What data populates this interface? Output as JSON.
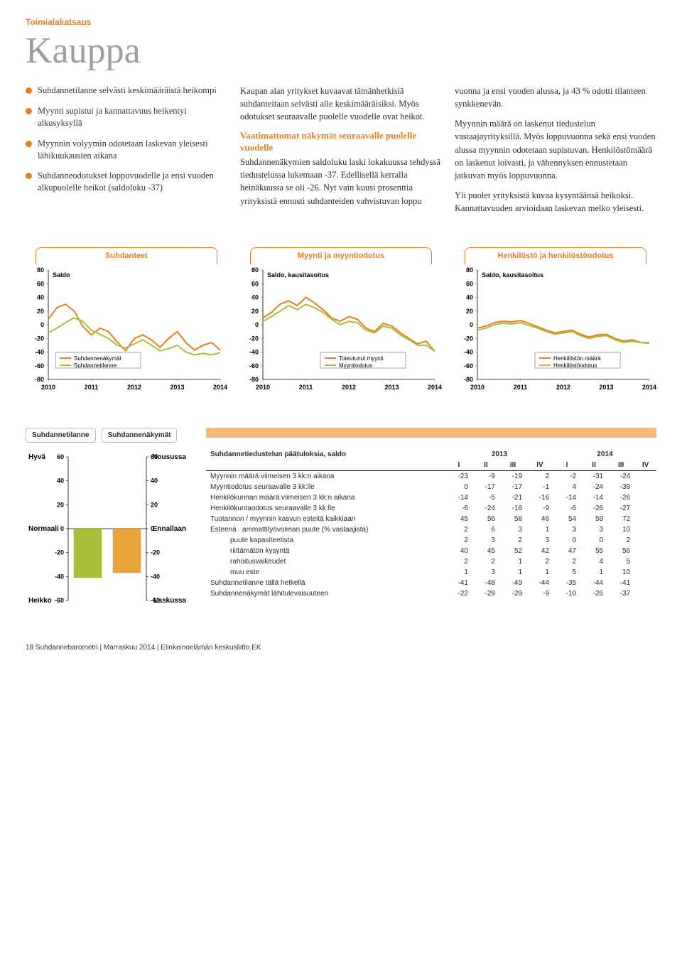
{
  "colors": {
    "accent": "#e87d1f",
    "title": "#9aa19d",
    "series1": "#e87d1f",
    "series2": "#a8bf3a",
    "bar1": "#a8bf3a",
    "bar2": "#e9a33b",
    "strip": "#f3b97a"
  },
  "header": {
    "section": "Toimialakatsaus",
    "title": "Kauppa"
  },
  "bullets": [
    "Suhdannetilanne selvästi keskimääräistä heikompi",
    "Myynti supistui ja kannattavuus heikentyi alkusyksyllä",
    "Myynnin volyymin odotetaan laskevan yleisesti lähikuukausien aikana",
    "Suhdanneodotukset loppuvuodelle ja ensi vuoden alkupuolelle heikot (saldoluku -37)"
  ],
  "col2": {
    "p1": "Kaupan alan yritykset kuvaavat tämänhetkisiä suhdanteitaan selvästi alle keskimääräisiksi. Myös odotukset seuraavalle puolelle vuodelle ovat heikot.",
    "subhead": "Vaatimattomat näkymät seuraavalle puolelle vuodelle",
    "p2": "Suhdannenäkymien saldoluku laski lokakuussa tehdyssä tiedustelussa lukemaan -37. Edellisellä kerralla heinäkuussa se oli -26. Nyt vain kuusi prosenttia yrityksistä ennusti suhdanteiden vahvistuvan loppu"
  },
  "col3": {
    "p1start": "vuonna ja ensi vuoden alussa, ja 43 % odotti tilanteen synkkenevän.",
    "p2": "Myynnin määrä on laskenut tiedustelun vastaajayrityksillä. Myös loppuvuonna sekä ensi vuoden alussa myynnin odotetaan supistuvan. Henkilöstömäärä on laskenut loivasti, ja vähennyksen ennustetaan jatkuvan myös loppuvuonna.",
    "p3": "Yli puolet yrityksistä kuvaa kysyntäänsä heikoksi. Kannattavuuden arvioidaan laskevan melko yleisesti."
  },
  "charts": [
    {
      "title": "Suhdanteet",
      "ylabel": "Saldo",
      "xticks": [
        "2010",
        "2011",
        "2012",
        "2013",
        "2014"
      ],
      "ymin": -80,
      "ymax": 80,
      "ystep": 20,
      "series": [
        {
          "name": "Suhdannenäkymät",
          "color": "#e87d1f",
          "values": [
            8,
            25,
            30,
            20,
            -2,
            -15,
            -5,
            -10,
            -25,
            -38,
            -20,
            -15,
            -22,
            -33,
            -20,
            -10,
            -26,
            -37,
            -30,
            -26,
            -37
          ]
        },
        {
          "name": "Suhdannetilanne",
          "color": "#a8bf3a",
          "values": [
            -12,
            -5,
            3,
            10,
            5,
            -8,
            -14,
            -20,
            -30,
            -34,
            -28,
            -22,
            -30,
            -38,
            -35,
            -30,
            -40,
            -44,
            -42,
            -44,
            -41
          ]
        }
      ],
      "legend_pos": "bottom-left"
    },
    {
      "title": "Myynti ja myyntiodotus",
      "ylabel": "Saldo, kausitasoitus",
      "xticks": [
        "2010",
        "2011",
        "2012",
        "2013",
        "2014"
      ],
      "ymin": -80,
      "ymax": 80,
      "ystep": 20,
      "series": [
        {
          "name": "Toteutunut myynti",
          "color": "#e87d1f",
          "values": [
            10,
            18,
            30,
            35,
            28,
            40,
            32,
            22,
            10,
            5,
            12,
            8,
            -5,
            -10,
            2,
            -2,
            -12,
            -20,
            -28,
            -24,
            -39
          ]
        },
        {
          "name": "Myyntiodotus",
          "color": "#a8bf3a",
          "values": [
            5,
            12,
            20,
            28,
            22,
            30,
            25,
            18,
            8,
            0,
            5,
            3,
            -8,
            -12,
            -2,
            -5,
            -15,
            -22,
            -30,
            -30,
            -39
          ]
        }
      ],
      "legend_pos": "bottom-center"
    },
    {
      "title": "Henkilöstö ja henkilöstöodotus",
      "ylabel": "Saldo, kausitasoitus",
      "xticks": [
        "2010",
        "2011",
        "2012",
        "2013",
        "2014"
      ],
      "ymin": -80,
      "ymax": 80,
      "ystep": 20,
      "series": [
        {
          "name": "Henkilöstön määrä",
          "color": "#e87d1f",
          "values": [
            -5,
            -2,
            3,
            5,
            4,
            6,
            2,
            -3,
            -8,
            -12,
            -10,
            -8,
            -14,
            -18,
            -15,
            -14,
            -20,
            -24,
            -22,
            -26,
            -27
          ]
        },
        {
          "name": "Henkilöstöodotus",
          "color": "#a8bf3a",
          "values": [
            -8,
            -5,
            0,
            2,
            1,
            3,
            -1,
            -5,
            -10,
            -14,
            -12,
            -10,
            -16,
            -20,
            -17,
            -16,
            -22,
            -26,
            -24,
            -26,
            -26
          ]
        }
      ],
      "legend_pos": "bottom-center"
    }
  ],
  "barchart": {
    "tabs": [
      "Suhdannetilanne",
      "Suhdannenäkymät"
    ],
    "left_labels": [
      "Hyvä",
      "Normaali",
      "Heikko"
    ],
    "right_labels": [
      "Nousussa",
      "Ennallaan",
      "Laskussa"
    ],
    "ymin": -60,
    "ymax": 60,
    "ystep": 20,
    "bars": [
      {
        "value": -41,
        "color": "#a8bf3a"
      },
      {
        "value": -37,
        "color": "#e9a33b"
      }
    ]
  },
  "table": {
    "title": "Suhdannetiedustelun päätuloksia, saldo",
    "years": [
      "2013",
      "2014"
    ],
    "quarters": [
      "I",
      "II",
      "III",
      "IV"
    ],
    "rows": [
      {
        "label": "Myynnin määrä viimeisen 3 kk:n aikana",
        "v": [
          "-23",
          "-9",
          "-19",
          "2",
          "-2",
          "-31",
          "-24",
          ""
        ]
      },
      {
        "label": "Myyntiodotus seuraavalle 3 kk:lle",
        "v": [
          "0",
          "-17",
          "-17",
          "-1",
          "4",
          "-24",
          "-39",
          ""
        ]
      },
      {
        "label": "Henkilökunnan määrä viimeisen 3 kk:n aikana",
        "v": [
          "-14",
          "-5",
          "-21",
          "-16",
          "-14",
          "-14",
          "-26",
          ""
        ]
      },
      {
        "label": "Henkilökuntaodotus seuraavalle 3 kk:lle",
        "v": [
          "-6",
          "-24",
          "-16",
          "-9",
          "-6",
          "-26",
          "-27",
          ""
        ]
      },
      {
        "label": "Tuotannon / myynnin kasvun esteitä kaikkiaan",
        "v": [
          "45",
          "56",
          "58",
          "46",
          "54",
          "59",
          "72",
          ""
        ]
      },
      {
        "label": "Esteenä   ammattityövoiman puute (% vastaajista)",
        "indent": true,
        "prefix": "Esteenä",
        "sub": "ammattityövoiman puute (% vastaajista)",
        "v": [
          "2",
          "6",
          "3",
          "1",
          "3",
          "3",
          "10",
          ""
        ]
      },
      {
        "label": "puute kapasiteetista",
        "indent": true,
        "v": [
          "2",
          "3",
          "2",
          "3",
          "0",
          "0",
          "2",
          ""
        ]
      },
      {
        "label": "riittämätön kysyntä",
        "indent": true,
        "v": [
          "40",
          "45",
          "52",
          "42",
          "47",
          "55",
          "56",
          ""
        ]
      },
      {
        "label": "rahoitusvaikeudet",
        "indent": true,
        "v": [
          "2",
          "2",
          "1",
          "2",
          "2",
          "4",
          "5",
          ""
        ]
      },
      {
        "label": "muu este",
        "indent": true,
        "v": [
          "1",
          "3",
          "1",
          "1",
          "5",
          "1",
          "10",
          ""
        ]
      },
      {
        "label": "Suhdannetilanne tällä hetkellä",
        "v": [
          "-41",
          "-48",
          "-49",
          "-44",
          "-35",
          "-44",
          "-41",
          ""
        ]
      },
      {
        "label": "Suhdannenäkymät lähitulevaisuuteen",
        "v": [
          "-22",
          "-29",
          "-29",
          "-9",
          "-10",
          "-26",
          "-37",
          ""
        ]
      }
    ]
  },
  "footer": "18 Suhdannebarometri  |  Marraskuu 2014  |  Elinkeinoelämän keskusliitto EK"
}
